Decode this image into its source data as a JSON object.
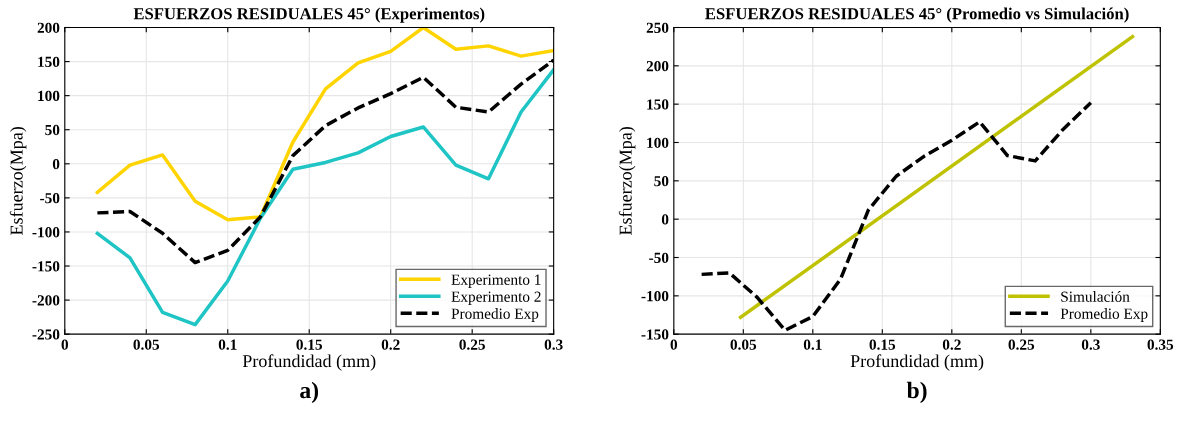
{
  "chart_data": [
    {
      "type": "line",
      "title": "ESFUERZOS RESIDUALES 45° (Experimentos)",
      "xlabel": "Profundidad (mm)",
      "ylabel": "Esfuerzo(Mpa)",
      "annotations": [
        "a)"
      ],
      "x": [
        0.02,
        0.04,
        0.06,
        0.08,
        0.1,
        0.12,
        0.14,
        0.16,
        0.18,
        0.2,
        0.22,
        0.24,
        0.26,
        0.28,
        0.3
      ],
      "series": [
        {
          "name": "Experimento 1",
          "color": "#ffd400",
          "values": [
            -42,
            -2,
            13,
            -55,
            -82,
            -78,
            32,
            110,
            148,
            165,
            200,
            168,
            173,
            158,
            166
          ]
        },
        {
          "name": "Experimento 2",
          "color": "#1fc4c4",
          "values": [
            -102,
            -138,
            -218,
            -236,
            -172,
            -80,
            -8,
            2,
            16,
            40,
            54,
            -2,
            -22,
            76,
            138
          ]
        },
        {
          "name": "Promedio Exp",
          "color": "#000000",
          "line_style": "dashed",
          "values": [
            -72,
            -70,
            -102,
            -145,
            -127,
            -78,
            12,
            56,
            82,
            103,
            127,
            83,
            76,
            117,
            152
          ]
        }
      ],
      "xlim": [
        0,
        0.3
      ],
      "xticks": [
        0,
        0.05,
        0.1,
        0.15,
        0.2,
        0.25,
        0.3
      ],
      "ylim": [
        -250,
        200
      ],
      "yticks": [
        -250,
        -200,
        -150,
        -100,
        -50,
        0,
        50,
        100,
        150,
        200
      ],
      "grid": true,
      "legend": "bottom right"
    },
    {
      "type": "line",
      "title": "ESFUERZOS RESIDUALES 45° (Promedio vs Simulación)",
      "xlabel": "Profundidad (mm)",
      "ylabel": "Esfuerzo(Mpa)",
      "annotations": [
        "b)"
      ],
      "series": [
        {
          "name": "Simulación",
          "color": "#bfc200",
          "x": [
            0.048,
            0.33
          ],
          "values": [
            -128,
            238
          ]
        },
        {
          "name": "Promedio Exp",
          "color": "#000000",
          "line_style": "dashed",
          "x": [
            0.02,
            0.04,
            0.06,
            0.08,
            0.1,
            0.12,
            0.14,
            0.16,
            0.18,
            0.2,
            0.22,
            0.24,
            0.26,
            0.28,
            0.3
          ],
          "values": [
            -72,
            -70,
            -102,
            -145,
            -127,
            -78,
            12,
            56,
            82,
            103,
            127,
            83,
            76,
            117,
            152
          ]
        }
      ],
      "xlim": [
        0,
        0.35
      ],
      "xticks": [
        0,
        0.05,
        0.1,
        0.15,
        0.2,
        0.25,
        0.3,
        0.35
      ],
      "ylim": [
        -150,
        250
      ],
      "yticks": [
        -150,
        -100,
        -50,
        0,
        50,
        100,
        150,
        200,
        250
      ],
      "grid": true,
      "legend": "bottom right"
    }
  ]
}
